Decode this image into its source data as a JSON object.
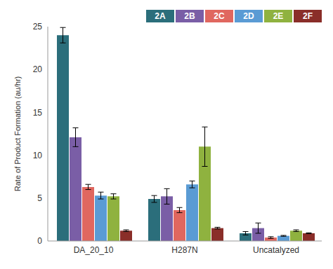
{
  "chart_data": {
    "type": "bar",
    "y_label": "Rate of Product Formation (au/hr)",
    "categories": [
      "DA_20_10",
      "H287N",
      "Uncatalyzed"
    ],
    "series": [
      {
        "name": "2A",
        "color": "#2b6e7b",
        "values": [
          24.0,
          4.9,
          0.9
        ],
        "errors": [
          0.9,
          0.4,
          0.2
        ]
      },
      {
        "name": "2B",
        "color": "#7a5ea6",
        "values": [
          12.1,
          5.2,
          1.5
        ],
        "errors": [
          1.1,
          0.9,
          0.6
        ]
      },
      {
        "name": "2C",
        "color": "#e0675f",
        "values": [
          6.3,
          3.6,
          0.4
        ],
        "errors": [
          0.3,
          0.3,
          0.1
        ]
      },
      {
        "name": "2D",
        "color": "#5a9bd4",
        "values": [
          5.3,
          6.6,
          0.6
        ],
        "errors": [
          0.4,
          0.4,
          0.05
        ]
      },
      {
        "name": "2E",
        "color": "#8fb23f",
        "values": [
          5.2,
          11.0,
          1.2
        ],
        "errors": [
          0.3,
          2.3,
          0.1
        ]
      },
      {
        "name": "2F",
        "color": "#8a2e29",
        "values": [
          1.2,
          1.5,
          0.9
        ],
        "errors": [
          0.1,
          0.1,
          0.05
        ]
      }
    ],
    "ylim": [
      0,
      25
    ],
    "yticks": [
      0,
      5,
      10,
      15,
      20,
      25
    ],
    "grid": false,
    "legend": "top-right"
  }
}
